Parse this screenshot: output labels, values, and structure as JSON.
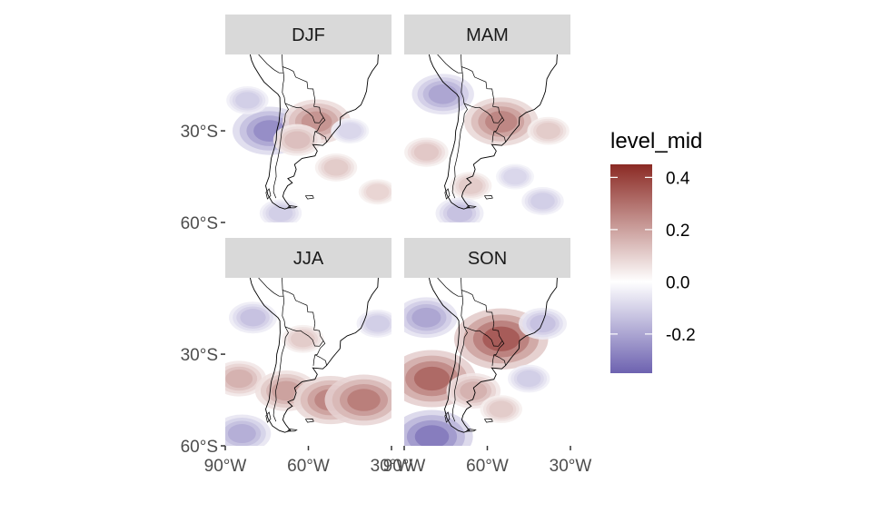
{
  "chart_data": {
    "type": "heatmap",
    "panels": [
      {
        "label": "DJF",
        "id": "djf",
        "anomalies": [
          {
            "lon": -74,
            "lat": -30,
            "value": -0.28
          },
          {
            "lon": -82,
            "lat": -20,
            "value": -0.12
          },
          {
            "lon": -57,
            "lat": -27,
            "value": 0.25
          },
          {
            "lon": -64,
            "lat": -33,
            "value": 0.15
          },
          {
            "lon": -50,
            "lat": -42,
            "value": 0.12
          },
          {
            "lon": -35,
            "lat": -50,
            "value": 0.1
          },
          {
            "lon": -45,
            "lat": -30,
            "value": -0.1
          },
          {
            "lon": -70,
            "lat": -57,
            "value": -0.12
          }
        ]
      },
      {
        "label": "MAM",
        "id": "mam",
        "anomalies": [
          {
            "lon": -76,
            "lat": -18,
            "value": -0.22
          },
          {
            "lon": -55,
            "lat": -27,
            "value": 0.28
          },
          {
            "lon": -82,
            "lat": -37,
            "value": 0.13
          },
          {
            "lon": -66,
            "lat": -48,
            "value": 0.12
          },
          {
            "lon": -50,
            "lat": -45,
            "value": -0.1
          },
          {
            "lon": -70,
            "lat": -57,
            "value": -0.15
          },
          {
            "lon": -40,
            "lat": -53,
            "value": -0.12
          },
          {
            "lon": -38,
            "lat": -30,
            "value": 0.12
          }
        ]
      },
      {
        "label": "JJA",
        "id": "jja",
        "anomalies": [
          {
            "lon": -85,
            "lat": -38,
            "value": 0.18
          },
          {
            "lon": -68,
            "lat": -42,
            "value": 0.22
          },
          {
            "lon": -52,
            "lat": -45,
            "value": 0.28
          },
          {
            "lon": -40,
            "lat": -45,
            "value": 0.3
          },
          {
            "lon": -62,
            "lat": -25,
            "value": 0.12
          },
          {
            "lon": -84,
            "lat": -56,
            "value": -0.2
          },
          {
            "lon": -80,
            "lat": -18,
            "value": -0.15
          },
          {
            "lon": -35,
            "lat": -20,
            "value": -0.12
          }
        ]
      },
      {
        "label": "SON",
        "id": "son",
        "anomalies": [
          {
            "lon": -80,
            "lat": -38,
            "value": 0.35
          },
          {
            "lon": -55,
            "lat": -25,
            "value": 0.38
          },
          {
            "lon": -80,
            "lat": -57,
            "value": -0.32
          },
          {
            "lon": -45,
            "lat": -38,
            "value": -0.12
          },
          {
            "lon": -65,
            "lat": -42,
            "value": 0.18
          },
          {
            "lon": -82,
            "lat": -18,
            "value": -0.22
          },
          {
            "lon": -40,
            "lat": -20,
            "value": -0.15
          },
          {
            "lon": -55,
            "lat": -48,
            "value": 0.12
          }
        ]
      }
    ],
    "x_ticks": [
      {
        "value": -90,
        "label": "90°W"
      },
      {
        "value": -60,
        "label": "60°W"
      },
      {
        "value": -30,
        "label": "30°W"
      }
    ],
    "y_ticks": [
      {
        "value": -30,
        "label": "30°S"
      },
      {
        "value": -60,
        "label": "60°S"
      }
    ],
    "lon_range": [
      -90,
      -30
    ],
    "lat_range": [
      -60,
      -5
    ],
    "legend": {
      "title": "level_mid",
      "ticks": [
        {
          "value": 0.4,
          "label": "0.4"
        },
        {
          "value": 0.2,
          "label": "0.2"
        },
        {
          "value": 0.0,
          "label": "0.0"
        },
        {
          "value": -0.2,
          "label": "-0.2"
        }
      ],
      "range": [
        -0.35,
        0.45
      ]
    },
    "colors": {
      "high": "#8b2a24",
      "mid": "#ffffff",
      "low": "#6d62b0",
      "strip": "#d9d9d9",
      "land_border": "#000000"
    }
  }
}
